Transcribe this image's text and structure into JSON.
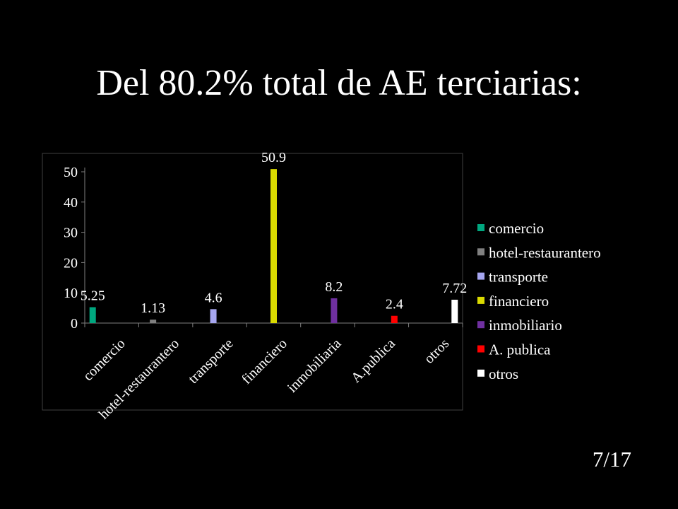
{
  "slide": {
    "title": "Del 80.2% total de AE terciarias:",
    "page": "7/17"
  },
  "chart_data": {
    "type": "bar",
    "categories": [
      "comercio",
      "hotel-restaurantero",
      "transporte",
      "financiero",
      "inmobiliaria",
      "A.publica",
      "otros"
    ],
    "series": [
      {
        "name": "comercio",
        "color": "#00A77F",
        "category_index": 0,
        "value": 5.25,
        "label": "5.25"
      },
      {
        "name": "hotel-restaurantero",
        "color": "#808080",
        "category_index": 1,
        "value": 1.13,
        "label": "1.13"
      },
      {
        "name": "transporte",
        "color": "#A6A6F0",
        "category_index": 2,
        "value": 4.6,
        "label": "4.6"
      },
      {
        "name": "financiero",
        "color": "#DADA00",
        "category_index": 3,
        "value": 50.9,
        "label": "50.9"
      },
      {
        "name": "inmobiliario",
        "color": "#7030A0",
        "category_index": 4,
        "value": 8.2,
        "label": "8.2"
      },
      {
        "name": "A. publica",
        "color": "#FF0000",
        "category_index": 5,
        "value": 2.4,
        "label": "2.4"
      },
      {
        "name": "otros",
        "color": "#FFFFFF",
        "category_index": 6,
        "value": 7.72,
        "label": "7.72"
      }
    ],
    "y_ticks": [
      "0",
      "10",
      "20",
      "30",
      "40",
      "50"
    ],
    "ylim": [
      0,
      52
    ],
    "legend_position": "right",
    "grid": false
  }
}
